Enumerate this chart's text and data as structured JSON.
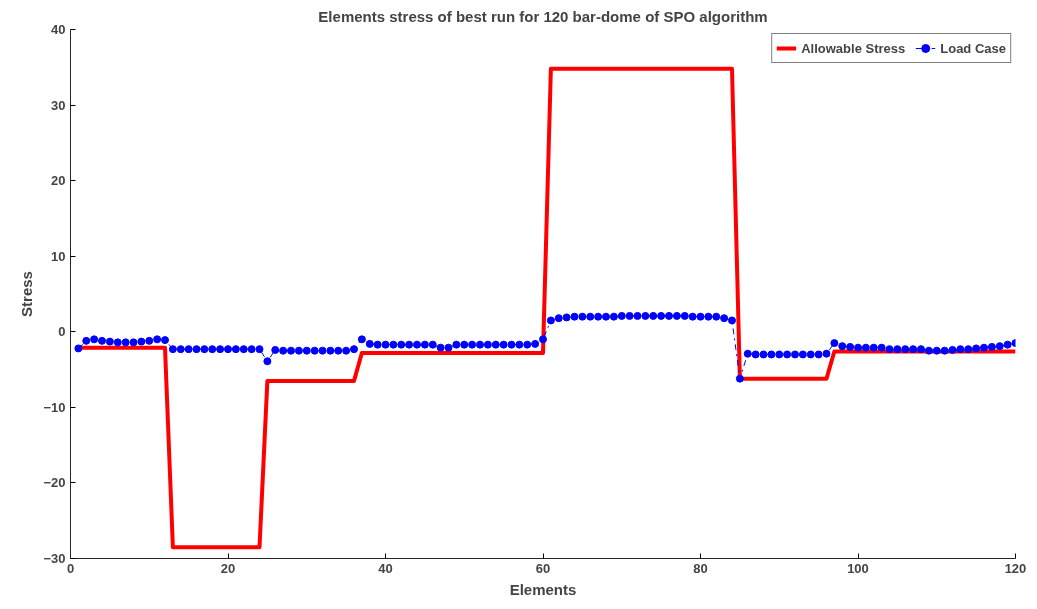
{
  "chart_data": {
    "type": "line",
    "title": "Elements stress of best run for 120 bar-dome of SPO algorithm",
    "xlabel": "Elements",
    "ylabel": "Stress",
    "x": [
      1,
      2,
      3,
      4,
      5,
      6,
      7,
      8,
      9,
      10,
      11,
      12,
      13,
      14,
      15,
      16,
      17,
      18,
      19,
      20,
      21,
      22,
      23,
      24,
      25,
      26,
      27,
      28,
      29,
      30,
      31,
      32,
      33,
      34,
      35,
      36,
      37,
      38,
      39,
      40,
      41,
      42,
      43,
      44,
      45,
      46,
      47,
      48,
      49,
      50,
      51,
      52,
      53,
      54,
      55,
      56,
      57,
      58,
      59,
      60,
      61,
      62,
      63,
      64,
      65,
      66,
      67,
      68,
      69,
      70,
      71,
      72,
      73,
      74,
      75,
      76,
      77,
      78,
      79,
      80,
      81,
      82,
      83,
      84,
      85,
      86,
      87,
      88,
      89,
      90,
      91,
      92,
      93,
      94,
      95,
      96,
      97,
      98,
      99,
      100,
      101,
      102,
      103,
      104,
      105,
      106,
      107,
      108,
      109,
      110,
      111,
      112,
      113,
      114,
      115,
      116,
      117,
      118,
      119,
      120
    ],
    "series": [
      {
        "name": "Allowable Stress",
        "color": "#ff0000",
        "marker": "none",
        "line_style": "solid",
        "values": [
          -2.1,
          -2.1,
          -2.1,
          -2.1,
          -2.1,
          -2.1,
          -2.1,
          -2.1,
          -2.1,
          -2.1,
          -2.1,
          -2.1,
          -28.5,
          -28.5,
          -28.5,
          -28.5,
          -28.5,
          -28.5,
          -28.5,
          -28.5,
          -28.5,
          -28.5,
          -28.5,
          -28.5,
          -6.5,
          -6.5,
          -6.5,
          -6.5,
          -6.5,
          -6.5,
          -6.5,
          -6.5,
          -6.5,
          -6.5,
          -6.5,
          -6.5,
          -2.8,
          -2.8,
          -2.8,
          -2.8,
          -2.8,
          -2.8,
          -2.8,
          -2.8,
          -2.8,
          -2.8,
          -2.8,
          -2.8,
          -2.8,
          -2.8,
          -2.8,
          -2.8,
          -2.8,
          -2.8,
          -2.8,
          -2.8,
          -2.8,
          -2.8,
          -2.8,
          -2.8,
          34.8,
          34.8,
          34.8,
          34.8,
          34.8,
          34.8,
          34.8,
          34.8,
          34.8,
          34.8,
          34.8,
          34.8,
          34.8,
          34.8,
          34.8,
          34.8,
          34.8,
          34.8,
          34.8,
          34.8,
          34.8,
          34.8,
          34.8,
          34.8,
          -6.2,
          -6.2,
          -6.2,
          -6.2,
          -6.2,
          -6.2,
          -6.2,
          -6.2,
          -6.2,
          -6.2,
          -6.2,
          -6.2,
          -2.6,
          -2.6,
          -2.6,
          -2.6,
          -2.6,
          -2.6,
          -2.6,
          -2.6,
          -2.6,
          -2.6,
          -2.6,
          -2.6,
          -2.6,
          -2.6,
          -2.6,
          -2.6,
          -2.6,
          -2.6,
          -2.6,
          -2.6,
          -2.6,
          -2.6,
          -2.6,
          -2.6
        ]
      },
      {
        "name": "Load Case",
        "color": "#0000ff",
        "marker": "circle",
        "line_style": "dashed",
        "values": [
          -2.2,
          -1.2,
          -1.0,
          -1.2,
          -1.3,
          -1.4,
          -1.4,
          -1.4,
          -1.3,
          -1.2,
          -1.0,
          -1.1,
          -2.3,
          -2.3,
          -2.3,
          -2.3,
          -2.3,
          -2.3,
          -2.3,
          -2.3,
          -2.3,
          -2.3,
          -2.3,
          -2.3,
          -3.9,
          -2.4,
          -2.5,
          -2.5,
          -2.5,
          -2.5,
          -2.5,
          -2.5,
          -2.5,
          -2.5,
          -2.5,
          -2.3,
          -1.0,
          -1.6,
          -1.7,
          -1.7,
          -1.7,
          -1.7,
          -1.7,
          -1.7,
          -1.7,
          -1.7,
          -2.1,
          -2.1,
          -1.7,
          -1.7,
          -1.7,
          -1.7,
          -1.7,
          -1.7,
          -1.7,
          -1.7,
          -1.7,
          -1.7,
          -1.6,
          -1.0,
          1.5,
          1.8,
          1.9,
          2.0,
          2.0,
          2.0,
          2.0,
          2.0,
          2.0,
          2.1,
          2.1,
          2.1,
          2.1,
          2.1,
          2.1,
          2.1,
          2.1,
          2.1,
          2.0,
          2.0,
          2.0,
          2.0,
          1.8,
          1.5,
          -6.2,
          -2.9,
          -3.0,
          -3.0,
          -3.0,
          -3.0,
          -3.0,
          -3.0,
          -3.0,
          -3.0,
          -3.0,
          -2.9,
          -1.5,
          -1.9,
          -2.0,
          -2.1,
          -2.1,
          -2.1,
          -2.1,
          -2.3,
          -2.3,
          -2.3,
          -2.3,
          -2.3,
          -2.5,
          -2.5,
          -2.5,
          -2.4,
          -2.3,
          -2.3,
          -2.2,
          -2.1,
          -2.0,
          -1.9,
          -1.7,
          -1.5
        ]
      }
    ],
    "xlim": [
      0,
      120
    ],
    "xticks": [
      0,
      20,
      40,
      60,
      80,
      100,
      120
    ],
    "ylim": [
      -30,
      40
    ],
    "yticks": [
      -30,
      -20,
      -10,
      0,
      10,
      20,
      30,
      40
    ],
    "grid": false,
    "legend": "top right"
  }
}
